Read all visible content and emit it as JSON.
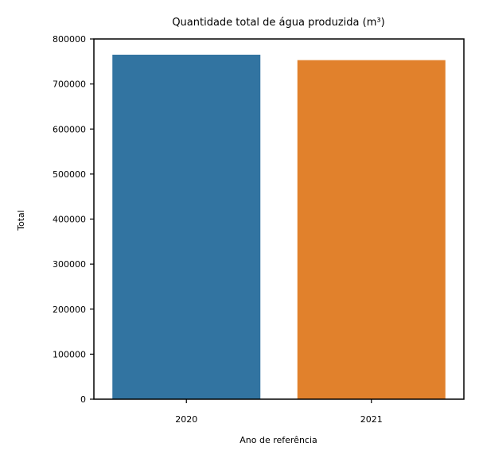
{
  "chart_data": {
    "type": "bar",
    "title": "Quantidade total de água produzida (m³)",
    "xlabel": "Ano de referência",
    "ylabel": "Total",
    "categories": [
      "2020",
      "2021"
    ],
    "values": [
      765000,
      753000
    ],
    "colors": [
      "#3274a1",
      "#e1812c"
    ],
    "ylim": [
      0,
      800000
    ],
    "yticks": [
      0,
      100000,
      200000,
      300000,
      400000,
      500000,
      600000,
      700000,
      800000
    ],
    "ytick_labels": [
      "0",
      "100000",
      "200000",
      "300000",
      "400000",
      "500000",
      "600000",
      "700000",
      "800000"
    ],
    "grid": false,
    "legend": "none"
  }
}
